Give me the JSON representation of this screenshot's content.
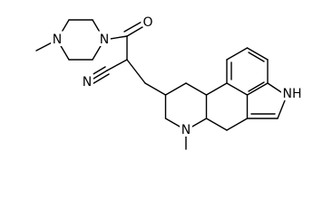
{
  "atom_labels": [
    "N",
    "N",
    "O",
    "N",
    "NH",
    "N"
  ]
}
